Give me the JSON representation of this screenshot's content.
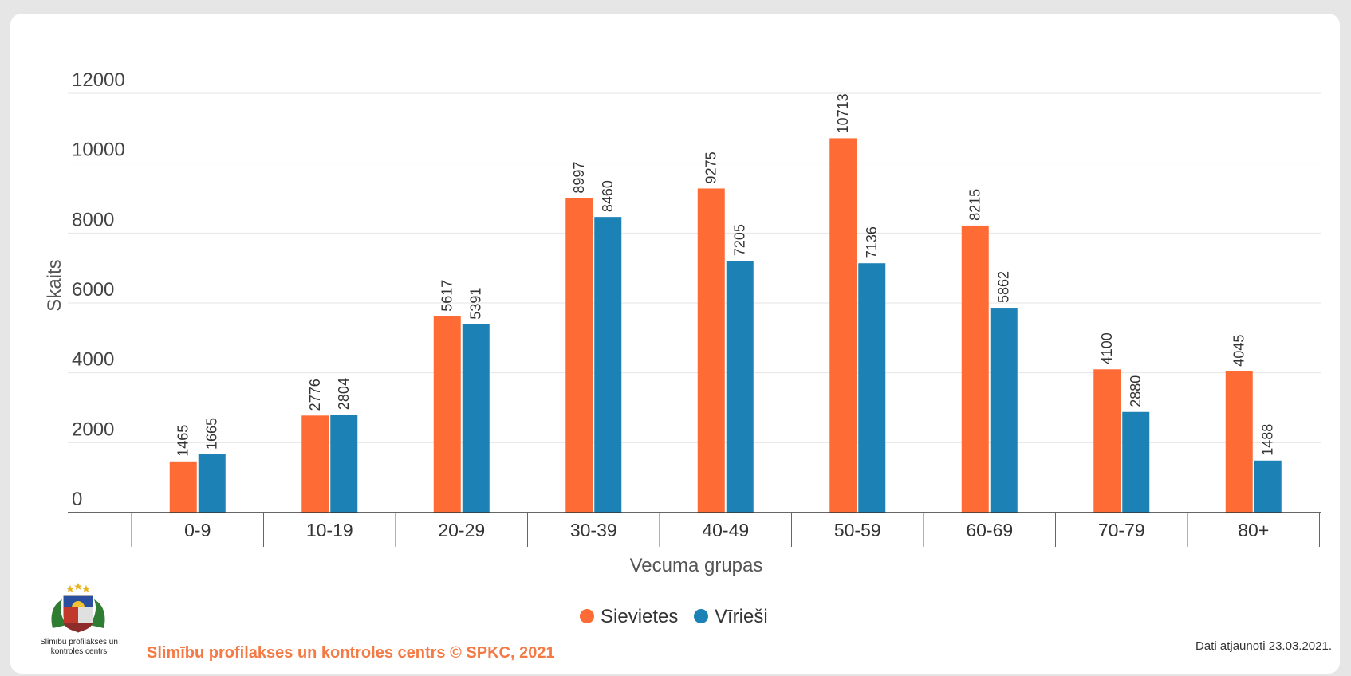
{
  "chart_data": {
    "type": "bar",
    "title": "",
    "xlabel": "Vecuma grupas",
    "ylabel": "Skaits",
    "ylim": [
      0,
      12000
    ],
    "yticks": [
      "0",
      "2000",
      "4000",
      "6000",
      "8000",
      "10000",
      "12000"
    ],
    "categories": [
      "0-9",
      "10-19",
      "20-29",
      "30-39",
      "40-49",
      "50-59",
      "60-69",
      "70-79",
      "80+"
    ],
    "series": [
      {
        "name": "Sievietes",
        "color": "#ff6b35",
        "values": [
          1465,
          2776,
          5617,
          8997,
          9275,
          10713,
          8215,
          4100,
          4045
        ]
      },
      {
        "name": "Vīrieši",
        "color": "#1c82b5",
        "values": [
          1665,
          2804,
          5391,
          8460,
          7205,
          7136,
          5862,
          2880,
          1488
        ]
      }
    ],
    "grid": true,
    "legend": "bottom-center"
  },
  "footer": {
    "logo_caption": "Slimību profilakses un kontroles centrs",
    "brand": "Slimību profilakses un kontroles centrs © SPKC, 2021",
    "updated": "Dati atjaunoti 23.03.2021."
  }
}
